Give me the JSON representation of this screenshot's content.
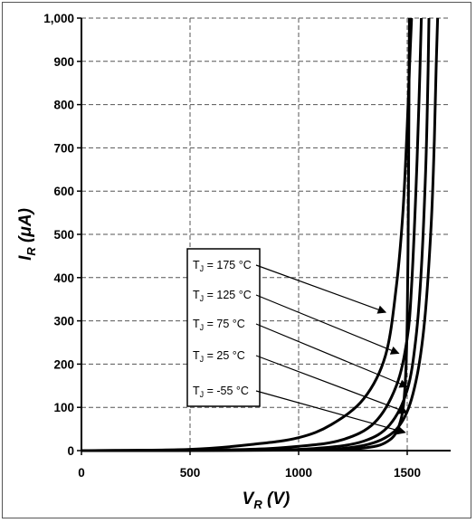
{
  "chart_data": {
    "type": "line",
    "xlabel": "V",
    "xlabel_sub": "R",
    "xlabel_unit": " (V)",
    "ylabel": "I",
    "ylabel_sub": "R",
    "ylabel_unit": " (μA)",
    "xlim": [
      0,
      1700
    ],
    "ylim": [
      0,
      1000
    ],
    "x_ticks": [
      "0",
      "500",
      "1000",
      "1500"
    ],
    "x_tick_values": [
      0,
      500,
      1000,
      1500
    ],
    "y_ticks": [
      "0",
      "100",
      "200",
      "300",
      "400",
      "500",
      "600",
      "700",
      "800",
      "900",
      "1,000"
    ],
    "y_tick_values": [
      0,
      100,
      200,
      300,
      400,
      500,
      600,
      700,
      800,
      900,
      1000
    ],
    "grid": true,
    "series": [
      {
        "name": "TJ = 175 °C",
        "x": [
          0,
          500,
          800,
          1000,
          1150,
          1300,
          1400,
          1450,
          1480,
          1500,
          1510,
          1520
        ],
        "y": [
          0,
          3,
          15,
          30,
          60,
          120,
          220,
          380,
          550,
          750,
          880,
          1000
        ]
      },
      {
        "name": "TJ = 125 °C",
        "x": [
          0,
          700,
          1000,
          1200,
          1350,
          1450,
          1500,
          1520,
          1540,
          1555,
          1565
        ],
        "y": [
          0,
          2,
          10,
          25,
          65,
          150,
          260,
          380,
          600,
          820,
          1000
        ]
      },
      {
        "name": "TJ = 75 °C",
        "x": [
          0,
          800,
          1100,
          1300,
          1420,
          1500,
          1540,
          1565,
          1585,
          1595,
          1600
        ],
        "y": [
          0,
          1,
          6,
          22,
          60,
          140,
          260,
          420,
          650,
          850,
          1000
        ]
      },
      {
        "name": "TJ = 25 °C",
        "x": [
          0,
          900,
          1200,
          1380,
          1480,
          1540,
          1580,
          1610,
          1625,
          1633,
          1640
        ],
        "y": [
          0,
          1,
          5,
          25,
          70,
          160,
          300,
          520,
          720,
          880,
          1000
        ]
      },
      {
        "name": "TJ = -55 °C",
        "x": [
          0,
          1000,
          1300,
          1420,
          1470,
          1490,
          1500,
          1505,
          1508,
          1510
        ],
        "y": [
          0,
          1,
          6,
          25,
          70,
          150,
          300,
          550,
          800,
          1000
        ]
      }
    ],
    "annotations": [
      {
        "label_T": "T",
        "label_sub": "J",
        "label_rest": " = 175 °C",
        "target_x": 1400,
        "target_y": 320
      },
      {
        "label_T": "T",
        "label_sub": "J",
        "label_rest": " = 125 °C",
        "target_x": 1460,
        "target_y": 225
      },
      {
        "label_T": "T",
        "label_sub": "J",
        "label_rest": " = 75 °C",
        "target_x": 1500,
        "target_y": 148
      },
      {
        "label_T": "T",
        "label_sub": "J",
        "label_rest": " = 25 °C",
        "target_x": 1500,
        "target_y": 88
      },
      {
        "label_T": "T",
        "label_sub": "J",
        "label_rest": " = -55 °C",
        "target_x": 1490,
        "target_y": 42
      }
    ],
    "line_color": "#000000",
    "grid_color": "#555555"
  }
}
